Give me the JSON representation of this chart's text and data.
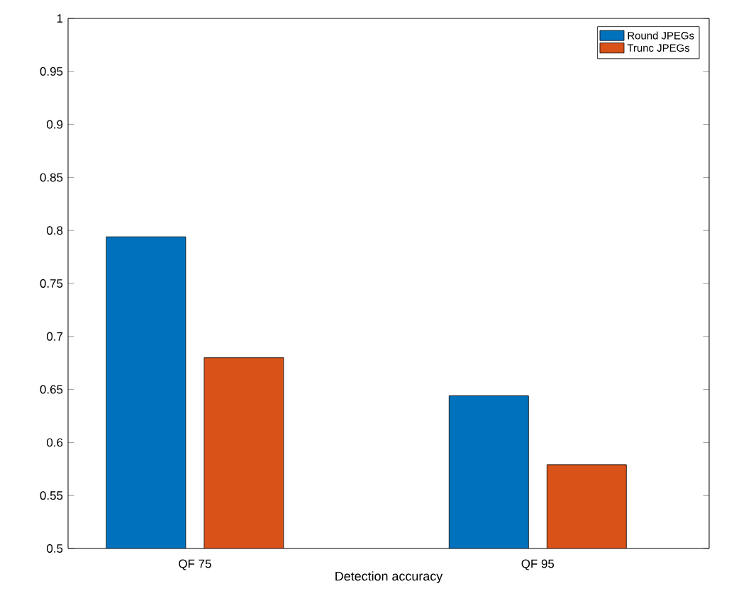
{
  "chart_data": {
    "type": "bar",
    "xlabel": "Detection accuracy",
    "categories": [
      "QF 75",
      "QF 95"
    ],
    "series": [
      {
        "name": "Round JPEGs",
        "color": "#0072bd",
        "values": [
          0.794,
          0.644
        ]
      },
      {
        "name": "Trunc JPEGs",
        "color": "#d95319",
        "values": [
          0.68,
          0.579
        ]
      }
    ],
    "ylim": [
      0.5,
      1
    ],
    "yticks": [
      0.5,
      0.55,
      0.6,
      0.65,
      0.7,
      0.75,
      0.8,
      0.85,
      0.9,
      0.95,
      1
    ],
    "grid": false,
    "legend": "top right"
  }
}
